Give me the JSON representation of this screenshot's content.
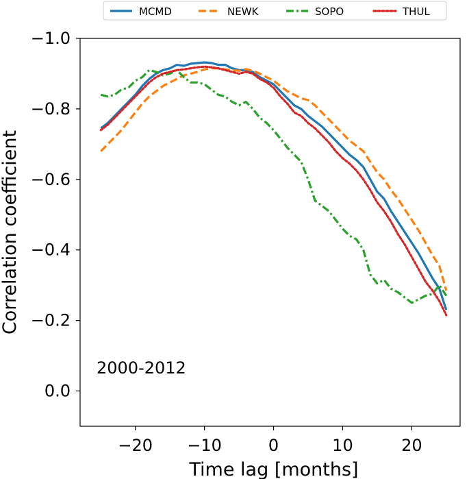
{
  "chart_data": {
    "type": "line",
    "title": "",
    "xlabel": "Time lag [months]",
    "ylabel": "Correlation coefficient",
    "xlim": [
      -28,
      27
    ],
    "ylim": [
      0.1,
      -1.0
    ],
    "xticks": [
      -20,
      -10,
      0,
      10,
      20
    ],
    "xtick_labels": [
      "−20",
      "−10",
      "0",
      "10",
      "20"
    ],
    "yticks": [
      -1.0,
      -0.8,
      -0.6,
      -0.4,
      -0.2,
      0.0
    ],
    "ytick_labels": [
      "−1.0",
      "−0.8",
      "−0.6",
      "−0.4",
      "−0.2",
      "0.0"
    ],
    "annotation": "2000-2012",
    "legend_position": "top-center-outside",
    "series": [
      {
        "name": "MCMD",
        "color": "#1f77b4",
        "style": "solid",
        "x": [
          -25,
          -24,
          -23,
          -22,
          -21,
          -20,
          -19,
          -18,
          -17,
          -16,
          -15,
          -14,
          -13,
          -12,
          -11,
          -10,
          -9,
          -8,
          -7,
          -6,
          -5,
          -4,
          -3,
          -2,
          -1,
          0,
          1,
          2,
          3,
          4,
          5,
          6,
          7,
          8,
          9,
          10,
          11,
          12,
          13,
          14,
          15,
          16,
          17,
          18,
          19,
          20,
          21,
          22,
          23,
          24,
          25
        ],
        "y": [
          -0.745,
          -0.76,
          -0.78,
          -0.8,
          -0.82,
          -0.84,
          -0.865,
          -0.885,
          -0.9,
          -0.91,
          -0.915,
          -0.925,
          -0.922,
          -0.928,
          -0.93,
          -0.932,
          -0.93,
          -0.925,
          -0.925,
          -0.915,
          -0.91,
          -0.91,
          -0.905,
          -0.89,
          -0.88,
          -0.87,
          -0.85,
          -0.83,
          -0.81,
          -0.8,
          -0.78,
          -0.765,
          -0.75,
          -0.73,
          -0.71,
          -0.69,
          -0.67,
          -0.655,
          -0.635,
          -0.6,
          -0.565,
          -0.545,
          -0.51,
          -0.48,
          -0.45,
          -0.42,
          -0.39,
          -0.355,
          -0.32,
          -0.29,
          -0.23
        ]
      },
      {
        "name": "NEWK",
        "color": "#ff7f0e",
        "style": "dashed",
        "x": [
          -25,
          -24,
          -23,
          -22,
          -21,
          -20,
          -19,
          -18,
          -17,
          -16,
          -15,
          -14,
          -13,
          -12,
          -11,
          -10,
          -9,
          -8,
          -7,
          -6,
          -5,
          -4,
          -3,
          -2,
          -1,
          0,
          1,
          2,
          3,
          4,
          5,
          6,
          7,
          8,
          9,
          10,
          11,
          12,
          13,
          14,
          15,
          16,
          17,
          18,
          19,
          20,
          21,
          22,
          23,
          24,
          25
        ],
        "y": [
          -0.68,
          -0.7,
          -0.72,
          -0.74,
          -0.765,
          -0.79,
          -0.815,
          -0.835,
          -0.85,
          -0.865,
          -0.875,
          -0.885,
          -0.895,
          -0.9,
          -0.905,
          -0.912,
          -0.915,
          -0.915,
          -0.912,
          -0.91,
          -0.908,
          -0.913,
          -0.908,
          -0.9,
          -0.89,
          -0.88,
          -0.865,
          -0.85,
          -0.84,
          -0.83,
          -0.825,
          -0.81,
          -0.79,
          -0.77,
          -0.75,
          -0.73,
          -0.71,
          -0.695,
          -0.68,
          -0.65,
          -0.62,
          -0.6,
          -0.57,
          -0.545,
          -0.515,
          -0.485,
          -0.455,
          -0.42,
          -0.385,
          -0.355,
          -0.285
        ]
      },
      {
        "name": "SOPO",
        "color": "#2ca02c",
        "style": "dashdot",
        "x": [
          -25,
          -24,
          -23,
          -22,
          -21,
          -20,
          -19,
          -18,
          -17,
          -16,
          -15,
          -14,
          -13,
          -12,
          -11,
          -10,
          -9,
          -8,
          -7,
          -6,
          -5,
          -4,
          -3,
          -2,
          -1,
          0,
          1,
          2,
          3,
          4,
          5,
          6,
          7,
          8,
          9,
          10,
          11,
          12,
          13,
          14,
          15,
          16,
          17,
          18,
          19,
          20,
          21,
          22,
          23,
          24,
          25
        ],
        "y": [
          -0.84,
          -0.835,
          -0.84,
          -0.855,
          -0.86,
          -0.88,
          -0.89,
          -0.91,
          -0.905,
          -0.895,
          -0.9,
          -0.91,
          -0.89,
          -0.875,
          -0.875,
          -0.87,
          -0.855,
          -0.84,
          -0.835,
          -0.82,
          -0.81,
          -0.82,
          -0.8,
          -0.775,
          -0.76,
          -0.74,
          -0.715,
          -0.69,
          -0.67,
          -0.65,
          -0.6,
          -0.54,
          -0.525,
          -0.51,
          -0.485,
          -0.46,
          -0.44,
          -0.43,
          -0.4,
          -0.33,
          -0.305,
          -0.315,
          -0.29,
          -0.28,
          -0.265,
          -0.25,
          -0.26,
          -0.27,
          -0.275,
          -0.3,
          -0.27
        ]
      },
      {
        "name": "THUL",
        "color": "#d62728",
        "style": "dotted",
        "x": [
          -25,
          -24,
          -23,
          -22,
          -21,
          -20,
          -19,
          -18,
          -17,
          -16,
          -15,
          -14,
          -13,
          -12,
          -11,
          -10,
          -9,
          -8,
          -7,
          -6,
          -5,
          -4,
          -3,
          -2,
          -1,
          0,
          1,
          2,
          3,
          4,
          5,
          6,
          7,
          8,
          9,
          10,
          11,
          12,
          13,
          14,
          15,
          16,
          17,
          18,
          19,
          20,
          21,
          22,
          23,
          24,
          25
        ],
        "y": [
          -0.74,
          -0.755,
          -0.775,
          -0.795,
          -0.815,
          -0.835,
          -0.855,
          -0.875,
          -0.89,
          -0.9,
          -0.905,
          -0.91,
          -0.912,
          -0.915,
          -0.918,
          -0.92,
          -0.918,
          -0.915,
          -0.91,
          -0.905,
          -0.9,
          -0.905,
          -0.9,
          -0.885,
          -0.875,
          -0.86,
          -0.835,
          -0.815,
          -0.79,
          -0.78,
          -0.76,
          -0.745,
          -0.725,
          -0.705,
          -0.68,
          -0.66,
          -0.645,
          -0.625,
          -0.6,
          -0.57,
          -0.535,
          -0.51,
          -0.48,
          -0.445,
          -0.415,
          -0.38,
          -0.345,
          -0.31,
          -0.285,
          -0.255,
          -0.215
        ]
      }
    ]
  }
}
